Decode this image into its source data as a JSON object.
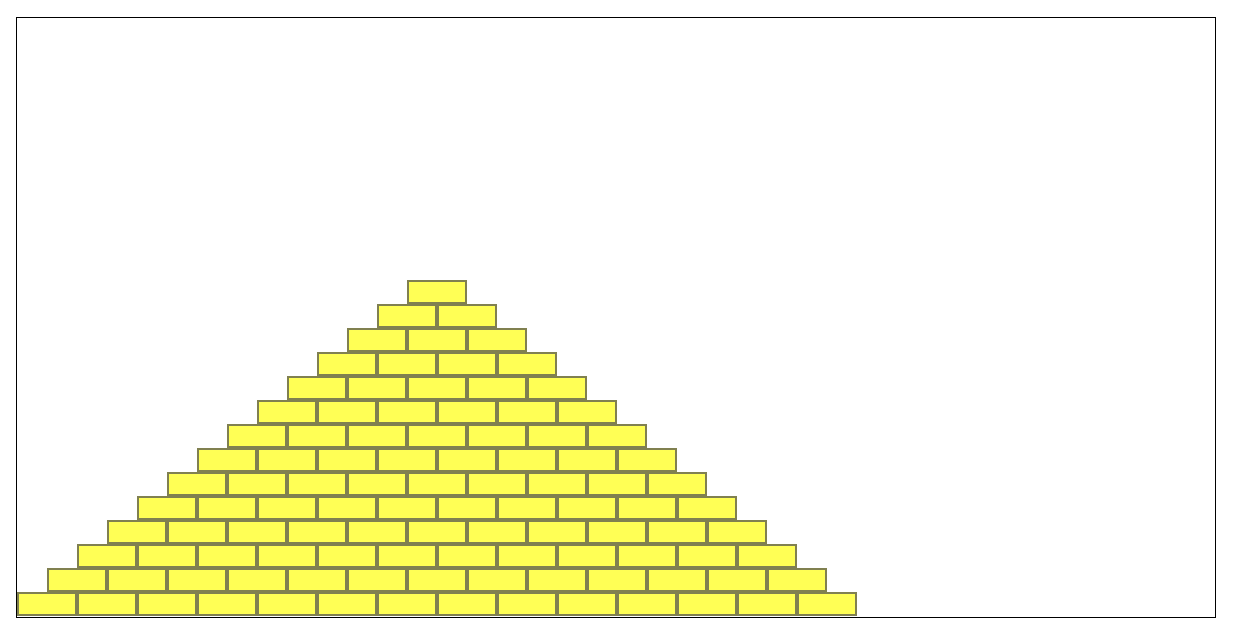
{
  "scene": {
    "background": "#ffffff",
    "frame_border": "#000000"
  },
  "pyramid": {
    "rows": 14,
    "brick_fill": "#ffff55",
    "brick_stroke": "#808050"
  }
}
